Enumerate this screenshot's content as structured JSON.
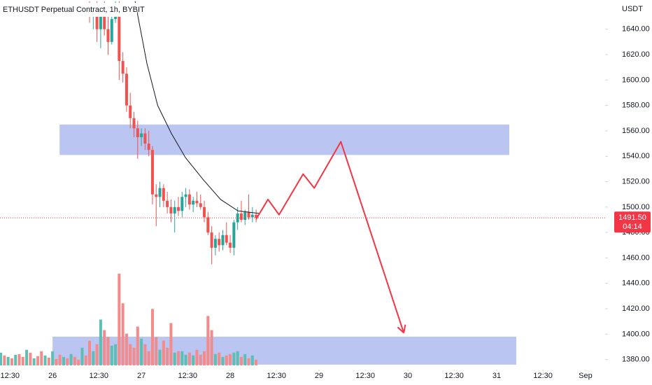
{
  "chart_data": {
    "type": "candlestick",
    "title": "ETHUSDT Perpetual Contract, 1h, BYBIT",
    "y_unit": "USDT",
    "x": [
      10,
      11,
      12,
      13,
      14,
      15,
      16,
      17,
      18,
      19,
      20,
      21,
      22,
      23,
      24,
      25,
      26,
      27,
      28,
      29,
      30,
      31,
      32,
      33,
      34,
      35,
      36,
      37,
      38,
      39,
      40,
      41,
      42,
      43,
      44,
      45,
      46,
      47,
      48,
      49,
      50,
      51,
      52,
      53,
      54,
      55
    ],
    "open": [
      1655,
      1650,
      1655,
      1640,
      1650,
      1640,
      1630,
      1648,
      1655,
      1615,
      1605,
      1580,
      1570,
      1562,
      1555,
      1558,
      1550,
      1545,
      1510,
      1508,
      1515,
      1505,
      1500,
      1495,
      1500,
      1497,
      1508,
      1510,
      1502,
      1505,
      1503,
      1500,
      1492,
      1480,
      1468,
      1475,
      1470,
      1478,
      1472,
      1468,
      1488,
      1495,
      1490,
      1496,
      1492,
      1494
    ],
    "high": [
      1662,
      1660,
      1662,
      1658,
      1662,
      1655,
      1650,
      1662,
      1662,
      1622,
      1610,
      1590,
      1575,
      1568,
      1562,
      1562,
      1560,
      1548,
      1518,
      1520,
      1518,
      1512,
      1506,
      1505,
      1508,
      1512,
      1515,
      1514,
      1508,
      1512,
      1510,
      1505,
      1496,
      1485,
      1478,
      1480,
      1482,
      1488,
      1478,
      1490,
      1500,
      1505,
      1498,
      1510,
      1500,
      1498
    ],
    "low": [
      1645,
      1640,
      1630,
      1625,
      1635,
      1620,
      1628,
      1645,
      1600,
      1598,
      1575,
      1562,
      1555,
      1538,
      1548,
      1545,
      1540,
      1502,
      1485,
      1500,
      1500,
      1495,
      1488,
      1480,
      1493,
      1492,
      1500,
      1498,
      1496,
      1500,
      1498,
      1488,
      1478,
      1455,
      1462,
      1465,
      1466,
      1470,
      1464,
      1462,
      1482,
      1488,
      1486,
      1490,
      1488,
      1488
    ],
    "close": [
      1650,
      1655,
      1640,
      1650,
      1640,
      1630,
      1648,
      1655,
      1615,
      1605,
      1580,
      1570,
      1562,
      1555,
      1558,
      1550,
      1545,
      1510,
      1508,
      1515,
      1505,
      1500,
      1495,
      1500,
      1497,
      1508,
      1510,
      1502,
      1505,
      1503,
      1500,
      1492,
      1480,
      1468,
      1475,
      1470,
      1478,
      1472,
      1468,
      1488,
      1495,
      1490,
      1496,
      1492,
      1494,
      1491.5
    ],
    "up_color": "#26a69a",
    "down_color": "#ef5350",
    "volume": {
      "y2lim": [
        -8,
        518
      ],
      "up": {
        "color": "#5cbfb4",
        "x": [
          -14,
          -12,
          -10,
          -7,
          -5,
          -2,
          0,
          3,
          5,
          8,
          11,
          13,
          16,
          17,
          24,
          29,
          33,
          35,
          36,
          38,
          44,
          46,
          49,
          50,
          52,
          54
        ],
        "values": [
          18,
          12,
          15,
          22,
          10,
          14,
          20,
          12,
          16,
          25,
          20,
          65,
          28,
          30,
          38,
          22,
          18,
          20,
          15,
          14,
          16,
          12,
          18,
          20,
          16,
          14
        ]
      },
      "down": {
        "color": "#f28b89",
        "x": [
          -13,
          -11,
          -9,
          -8,
          -6,
          -4,
          -3,
          -1,
          1,
          2,
          4,
          6,
          7,
          9,
          10,
          12,
          14,
          15,
          18,
          19,
          20,
          21,
          22,
          23,
          25,
          26,
          27,
          28,
          30,
          31,
          32,
          34,
          37,
          39,
          40,
          41,
          42,
          43,
          45,
          47,
          48,
          51,
          53,
          55
        ],
        "values": [
          14,
          10,
          16,
          12,
          18,
          13,
          20,
          11,
          9,
          15,
          10,
          12,
          8,
          14,
          35,
          30,
          50,
          40,
          130,
          88,
          45,
          30,
          25,
          55,
          30,
          20,
          80,
          40,
          35,
          25,
          60,
          20,
          18,
          22,
          15,
          20,
          70,
          50,
          18,
          14,
          16,
          12,
          10,
          8
        ]
      }
    },
    "ma": {
      "color": "#131722",
      "x": [
        22.3,
        25.5,
        28.4,
        32.1,
        35.9,
        40.6,
        45.4,
        50.1,
        55.8
      ],
      "y": [
        1662,
        1613,
        1580,
        1558,
        1539,
        1522,
        1506,
        1497,
        1495
      ]
    },
    "zones": [
      {
        "color": "#b2bff0",
        "x": [
          1.9,
          123.4
        ],
        "y": [
          1541,
          1565
        ]
      },
      {
        "color": "#b2bff0",
        "x": [
          0,
          125.3
        ],
        "y": [
          1376,
          1398
        ]
      }
    ],
    "projection": {
      "color": "#f23645",
      "x": [
        55,
        58.2,
        61.2,
        67.7,
        70.7,
        77.9,
        94.9
      ],
      "y": [
        1490.5,
        1506,
        1494,
        1526,
        1515,
        1551.5,
        1401
      ]
    },
    "last_price": {
      "value": 1491.5,
      "label": "1491.50",
      "countdown": "04:14",
      "color": "#f23645"
    },
    "xlim": [
      -14.2,
      149.3
    ],
    "ylim": [
      1371,
      1663
    ],
    "xticks": [
      {
        "value": -11.5,
        "label": "12:30"
      },
      {
        "value": 0,
        "label": "26"
      },
      {
        "value": 12.5,
        "label": "12:30"
      },
      {
        "value": 24,
        "label": "27"
      },
      {
        "value": 36.5,
        "label": "12:30"
      },
      {
        "value": 48,
        "label": "28"
      },
      {
        "value": 60.5,
        "label": "12:30"
      },
      {
        "value": 72,
        "label": "29"
      },
      {
        "value": 84.5,
        "label": "12:30"
      },
      {
        "value": 96,
        "label": "30"
      },
      {
        "value": 108.5,
        "label": "12:30"
      },
      {
        "value": 120,
        "label": "31"
      },
      {
        "value": 132.5,
        "label": "12:30"
      },
      {
        "value": 144,
        "label": "Sep"
      }
    ],
    "yticks": [
      {
        "value": 1380,
        "label": "1380.00"
      },
      {
        "value": 1400,
        "label": "1400.00"
      },
      {
        "value": 1420,
        "label": "1420.00"
      },
      {
        "value": 1440,
        "label": "1440.00"
      },
      {
        "value": 1460,
        "label": "1460.00"
      },
      {
        "value": 1480,
        "label": "1480.00"
      },
      {
        "value": 1500,
        "label": "1500.00"
      },
      {
        "value": 1520,
        "label": "1520.00"
      },
      {
        "value": 1540,
        "label": "1540.00"
      },
      {
        "value": 1560,
        "label": "1560.00"
      },
      {
        "value": 1580,
        "label": "1580.00"
      },
      {
        "value": 1600,
        "label": "1600.00"
      },
      {
        "value": 1620,
        "label": "1620.00"
      },
      {
        "value": 1640,
        "label": "1640.00"
      }
    ]
  }
}
